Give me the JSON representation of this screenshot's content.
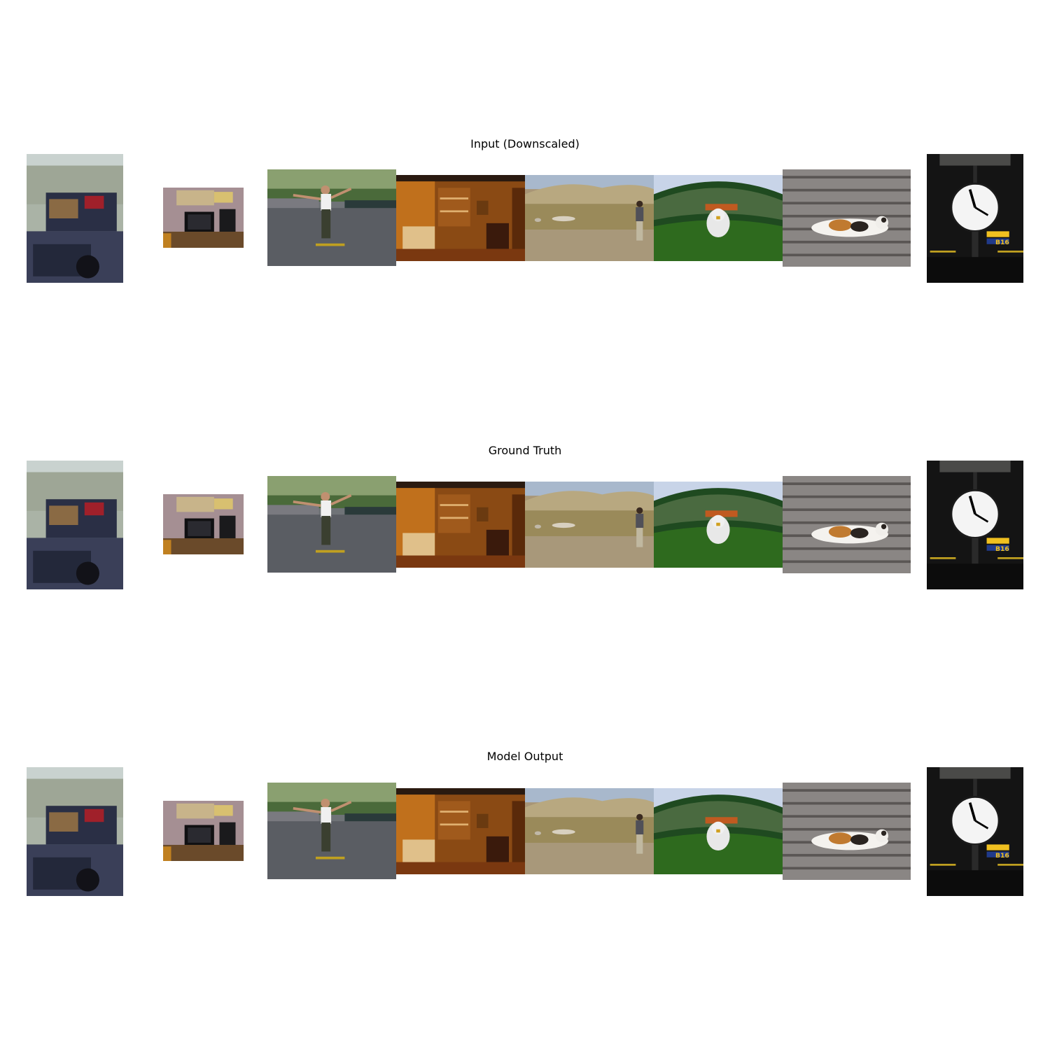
{
  "rows": [
    {
      "title": "Input (Downscaled)"
    },
    {
      "title": "Ground Truth"
    },
    {
      "title": "Model Output"
    }
  ],
  "clock_sign": "B16"
}
